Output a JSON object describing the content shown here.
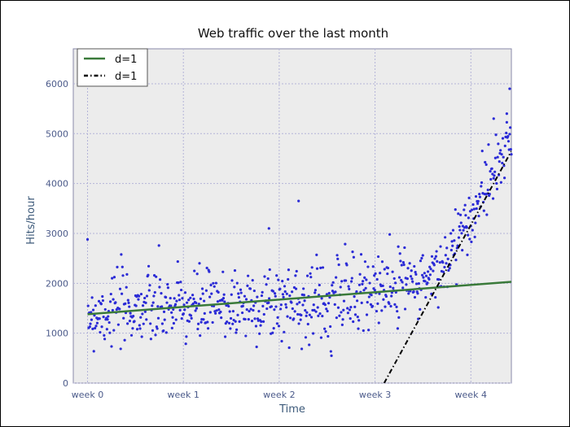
{
  "chart_data": {
    "type": "scatter",
    "title": "Web traffic over the last month",
    "xlabel": "Time",
    "ylabel": "Hits/hour",
    "xlim": [
      -25,
      743
    ],
    "ylim": [
      0,
      6700
    ],
    "x_ticks": [
      {
        "value": 0,
        "label": "week 0"
      },
      {
        "value": 168,
        "label": "week 1"
      },
      {
        "value": 336,
        "label": "week 2"
      },
      {
        "value": 504,
        "label": "week 3"
      },
      {
        "value": 672,
        "label": "week 4"
      }
    ],
    "y_ticks": [
      0,
      1000,
      2000,
      3000,
      4000,
      5000,
      6000
    ],
    "grid": true,
    "legend_position": "top-left",
    "series": [
      {
        "name": "d=1",
        "kind": "line",
        "style": "solid",
        "color": "#3a7a3a",
        "x": [
          0,
          743
        ],
        "y": [
          1380,
          2030
        ]
      },
      {
        "name": "d=1",
        "kind": "line",
        "style": "dashdot",
        "color": "#000000",
        "x": [
          520,
          743
        ],
        "y": [
          0,
          4650
        ]
      }
    ],
    "scatter": {
      "color": "#2b2bd6",
      "x_start": 0,
      "x_end": 743,
      "count": 743,
      "description_points": [
        [
          0,
          1400
        ],
        [
          84,
          1500
        ],
        [
          168,
          1500
        ],
        [
          252,
          1560
        ],
        [
          336,
          1600
        ],
        [
          420,
          1650
        ],
        [
          504,
          1820
        ],
        [
          560,
          2000
        ],
        [
          620,
          2300
        ],
        [
          672,
          3300
        ],
        [
          700,
          3800
        ],
        [
          720,
          4400
        ],
        [
          743,
          4900
        ]
      ],
      "outliers": [
        [
          318,
          3100
        ],
        [
          370,
          3650
        ],
        [
          740,
          5900
        ],
        [
          735,
          5400
        ],
        [
          712,
          5300
        ]
      ]
    }
  }
}
